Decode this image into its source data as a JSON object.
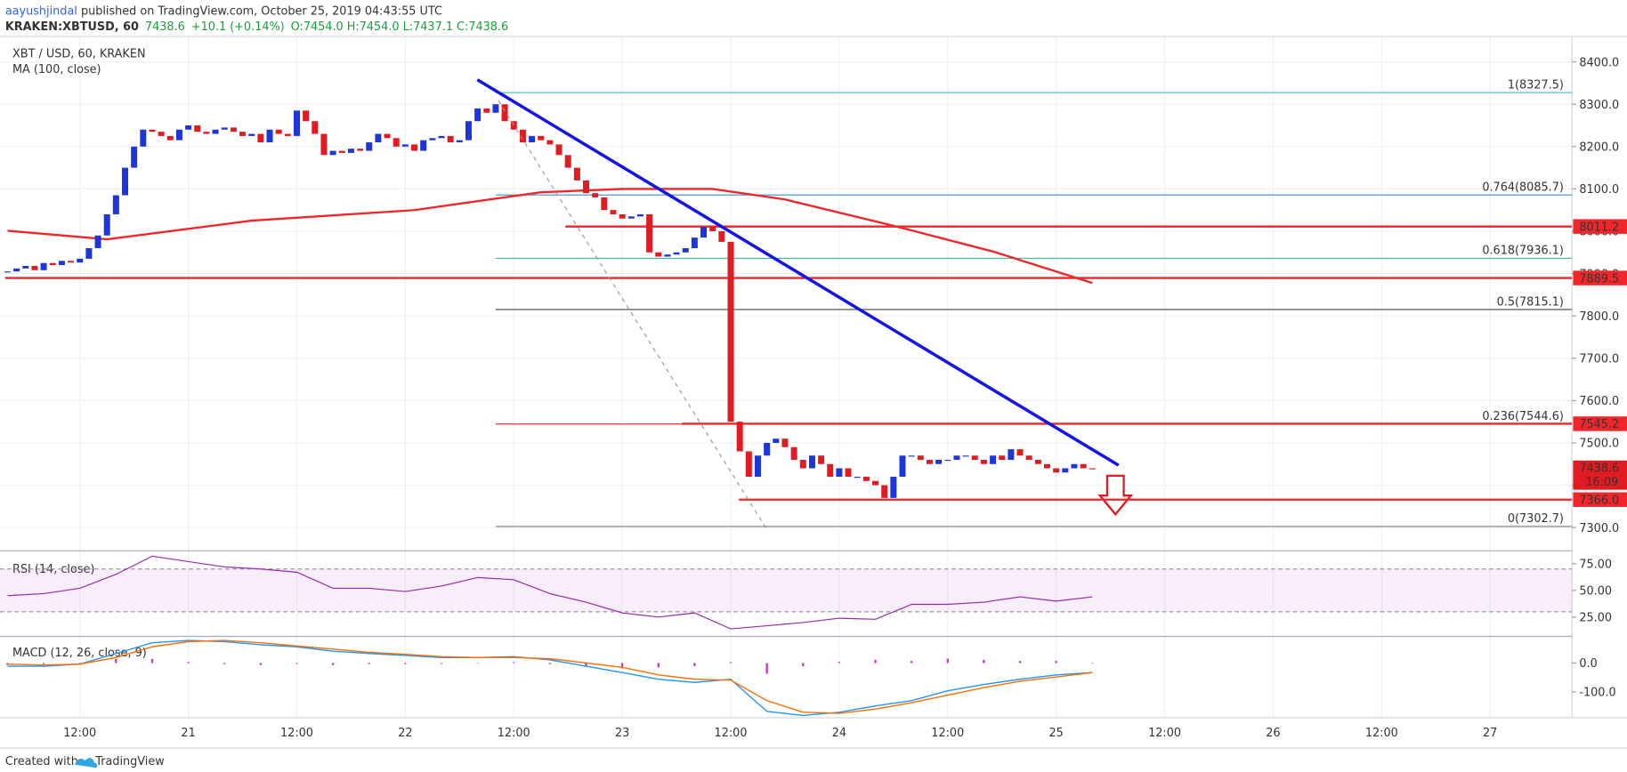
{
  "header": {
    "author": "aayushjindal",
    "published": " published on TradingView.com, October 25, 2019 04:43:55 UTC",
    "symbol": "KRAKEN:XBTUSD, 60",
    "last": "7438.6",
    "change": "+10.1 (+0.14%)",
    "ohlc": "O:7454.0 H:7454.0 L:7437.1 C:7438.6"
  },
  "footer": {
    "created_with": "Created with",
    "brand": "TradingView"
  },
  "chart_data": [
    {
      "type": "candlestick",
      "title": "XBT / USD, 60, KRAKEN",
      "x": [
        4,
        5,
        6,
        7,
        8,
        9,
        10,
        11,
        12,
        13,
        14,
        15,
        16,
        17,
        18,
        19,
        20,
        21,
        22,
        23,
        24,
        25,
        26,
        27,
        28,
        29,
        30,
        31,
        32,
        33,
        34,
        35,
        36,
        37,
        38,
        39,
        40,
        41,
        42,
        43,
        44,
        45,
        46,
        47,
        48,
        49,
        50,
        51,
        52,
        53,
        54,
        55,
        56,
        57,
        58,
        59,
        60,
        61,
        62,
        63,
        64,
        65,
        66,
        67,
        68,
        69,
        70,
        71,
        72,
        73,
        74,
        75,
        76,
        77,
        78,
        79,
        80,
        81,
        82,
        83,
        84,
        85,
        86,
        87,
        88,
        89,
        90,
        91,
        92,
        93,
        94,
        95,
        96,
        97,
        98,
        99,
        100,
        101,
        102,
        103,
        104,
        105,
        106,
        107,
        108,
        109,
        110,
        111,
        112,
        113,
        114,
        115,
        116,
        117,
        118,
        119,
        120,
        121,
        122,
        123,
        124
      ],
      "close": [
        7905,
        7912,
        7918,
        7908,
        7925,
        7920,
        7930,
        7926,
        7935,
        7960,
        7990,
        8040,
        8085,
        8150,
        8200,
        8240,
        8235,
        8225,
        8215,
        8240,
        8250,
        8235,
        8230,
        8240,
        8245,
        8235,
        8225,
        8230,
        8210,
        8240,
        8230,
        8225,
        8285,
        8260,
        8230,
        8180,
        8190,
        8185,
        8195,
        8190,
        8210,
        8230,
        8220,
        8200,
        8205,
        8190,
        8215,
        8220,
        8225,
        8210,
        8215,
        8260,
        8290,
        8280,
        8300,
        8260,
        8240,
        8210,
        8225,
        8215,
        8205,
        8180,
        8150,
        8120,
        8090,
        8080,
        8050,
        8040,
        8030,
        8035,
        8040,
        7950,
        7940,
        7945,
        7950,
        7960,
        7985,
        8010,
        8000,
        7975,
        7550,
        7480,
        7420,
        7470,
        7500,
        7510,
        7490,
        7460,
        7440,
        7470,
        7450,
        7420,
        7440,
        7420,
        7420,
        7410,
        7400,
        7370,
        7420,
        7470,
        7470,
        7460,
        7450,
        7460,
        7460,
        7470,
        7470,
        7460,
        7450,
        7470,
        7460,
        7485,
        7470,
        7460,
        7450,
        7440,
        7430,
        7440,
        7450,
        7440,
        7438.6
      ],
      "up_color": "#1e36d9",
      "down_color": "#e01b22",
      "xlim": [
        3.74,
        177.06
      ],
      "ylim": [
        7245,
        8460
      ],
      "yticks": [
        {
          "value": 8400,
          "label": "8400.0"
        },
        {
          "value": 8300,
          "label": "8300.0"
        },
        {
          "value": 8200,
          "label": "8200.0"
        },
        {
          "value": 8100,
          "label": "8100.0"
        },
        {
          "value": 8000,
          "label": "8000.0"
        },
        {
          "value": 7900,
          "label": "7900.0"
        },
        {
          "value": 7800,
          "label": "7800.0"
        },
        {
          "value": 7700,
          "label": "7700.0"
        },
        {
          "value": 7600,
          "label": "7600.0"
        },
        {
          "value": 7500,
          "label": "7500.0"
        },
        {
          "value": 7400,
          "label": "7400.0"
        },
        {
          "value": 7300,
          "label": "7300.0"
        }
      ],
      "xticks": [
        {
          "value": 12,
          "label": "12:00"
        },
        {
          "value": 24,
          "label": "21"
        },
        {
          "value": 36,
          "label": "12:00"
        },
        {
          "value": 48,
          "label": "22"
        },
        {
          "value": 60,
          "label": "12:00"
        },
        {
          "value": 72,
          "label": "23"
        },
        {
          "value": 84,
          "label": "12:00"
        },
        {
          "value": 96,
          "label": "24"
        },
        {
          "value": 108,
          "label": "12:00"
        },
        {
          "value": 120,
          "label": "25"
        },
        {
          "value": 132,
          "label": "12:00"
        },
        {
          "value": 144,
          "label": "26"
        },
        {
          "value": 156,
          "label": "12:00"
        },
        {
          "value": 168,
          "label": "27"
        }
      ],
      "grid": true,
      "ma": {
        "name": "MA (100, close)",
        "color": "#f0262a",
        "x": [
          4,
          15,
          31,
          49,
          63,
          72,
          82,
          90,
          102,
          113,
          124
        ],
        "values": [
          8001,
          7981,
          8025,
          8050,
          8092,
          8100,
          8100,
          8075,
          8013,
          7952,
          7878
        ]
      },
      "levels": [
        {
          "value": 7889.5,
          "from": 3.74
        },
        {
          "value": 8011.2,
          "from": 65.7
        },
        {
          "value": 7545.2,
          "from": 78.6
        },
        {
          "value": 7366,
          "label": "7366.0",
          "from": 84.9
        }
      ],
      "level_color": "#f0262a",
      "fib": {
        "from": 58.0,
        "levels": [
          {
            "value": 8327.5,
            "label": "1(8327.5)",
            "color": "#4ec1d4"
          },
          {
            "value": 8085.7,
            "label": "0.764(8085.7)",
            "color": "#3590c9"
          },
          {
            "value": 7936.1,
            "label": "0.618(7936.1)",
            "color": "#40b890"
          },
          {
            "value": 7815.1,
            "label": "0.5(7815.1)",
            "color": "#555555"
          },
          {
            "value": 7544.6,
            "label": "0.236(7544.6)",
            "color": "#e03030"
          },
          {
            "value": 7302.7,
            "label": "0(7302.7)",
            "color": "#888888"
          }
        ]
      },
      "trendlines": [
        {
          "x": [
            55.97,
            126.9
          ],
          "values": [
            8358,
            7447
          ],
          "color": "#1515e6",
          "dashed": false
        },
        {
          "x": [
            58.3,
            87.9
          ],
          "values": [
            8309,
            7299
          ],
          "color": "#999999",
          "dashed": true
        }
      ],
      "last_price": {
        "value": 7438.6,
        "countdown": "16:09"
      }
    },
    {
      "type": "line",
      "title": "RSI (14, close)",
      "x": [
        4,
        8,
        12,
        16,
        20,
        24,
        28,
        32,
        36,
        40,
        44,
        48,
        52,
        56,
        60,
        64,
        68,
        72,
        76,
        80,
        84,
        88,
        92,
        96,
        100,
        104,
        108,
        112,
        116,
        120,
        124
      ],
      "values": [
        45,
        47,
        52,
        65,
        82,
        77,
        72,
        70,
        67,
        52,
        52,
        49,
        54,
        62,
        60,
        47,
        39,
        29,
        25,
        29,
        14,
        17,
        20,
        24,
        23,
        37,
        37,
        39,
        44,
        40,
        44
      ],
      "color": "#9c27b0",
      "ylim": [
        7,
        87
      ],
      "yticks": [
        {
          "value": 75,
          "label": "75.00"
        },
        {
          "value": 50,
          "label": "50.00"
        },
        {
          "value": 25,
          "label": "25.00"
        }
      ],
      "band": [
        30,
        70
      ]
    },
    {
      "type": "macd",
      "title": "MACD (12, 26, close, 9)",
      "x": [
        4,
        8,
        12,
        16,
        20,
        24,
        28,
        32,
        36,
        40,
        44,
        48,
        52,
        56,
        60,
        64,
        68,
        72,
        76,
        80,
        84,
        88,
        92,
        96,
        100,
        104,
        108,
        112,
        116,
        120,
        124
      ],
      "series": [
        {
          "color": "#2196f3",
          "values": [
            -11,
            -11,
            -4,
            33,
            70,
            78,
            74,
            63,
            56,
            41,
            33,
            26,
            19,
            19,
            22,
            11,
            -11,
            -33,
            -56,
            -67,
            -56,
            -167,
            -181,
            -170,
            -148,
            -130,
            -96,
            -74,
            -56,
            -41,
            -33
          ]
        },
        {
          "color": "#ff6d00",
          "values": [
            -4,
            -7,
            -4,
            19,
            56,
            74,
            78,
            70,
            59,
            48,
            37,
            30,
            22,
            19,
            19,
            15,
            0,
            -15,
            -41,
            -56,
            -59,
            -130,
            -170,
            -174,
            -159,
            -137,
            -111,
            -85,
            -63,
            -48,
            -33
          ]
        }
      ],
      "histogram": {
        "color": "#c23bc7",
        "values": [
          -7,
          -4,
          0,
          14,
          14,
          4,
          -4,
          -7,
          -3,
          -7,
          -4,
          -4,
          -3,
          0,
          3,
          -4,
          -11,
          -18,
          -15,
          -11,
          3,
          -37,
          -11,
          4,
          11,
          7,
          15,
          11,
          7,
          7,
          0
        ]
      },
      "ylim": [
        -189,
        92
      ],
      "yticks": [
        {
          "value": 0,
          "label": "0.0"
        },
        {
          "value": -100,
          "label": "-100.0"
        }
      ]
    }
  ]
}
